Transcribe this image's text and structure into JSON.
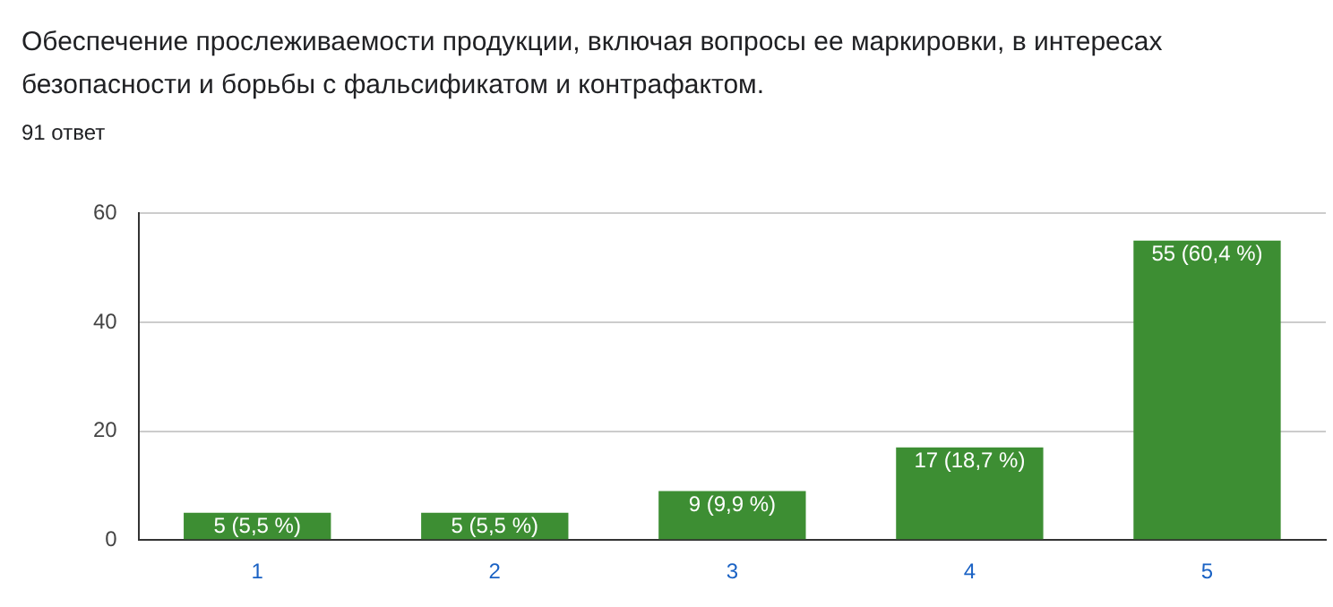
{
  "chart_data": {
    "type": "bar",
    "title": "Обеспечение прослеживаемости продукции, включая вопросы ее маркировки, в интересах безопасности и борьбы с фальсификатом и контрафактом.",
    "subtitle": "91 ответ",
    "categories": [
      "1",
      "2",
      "3",
      "4",
      "5"
    ],
    "series": [
      {
        "color": "#3d8e33",
        "values": [
          5,
          5,
          9,
          17,
          55
        ],
        "value_labels": [
          "5 (5,5 %)",
          "5 (5,5 %)",
          "9 (9,9 %)",
          "17 (18,7 %)",
          "55 (60,4 %)"
        ]
      }
    ],
    "ylim": [
      0,
      60
    ],
    "yticks": [
      0,
      20,
      40,
      60
    ],
    "grid": "y",
    "legend": false
  }
}
